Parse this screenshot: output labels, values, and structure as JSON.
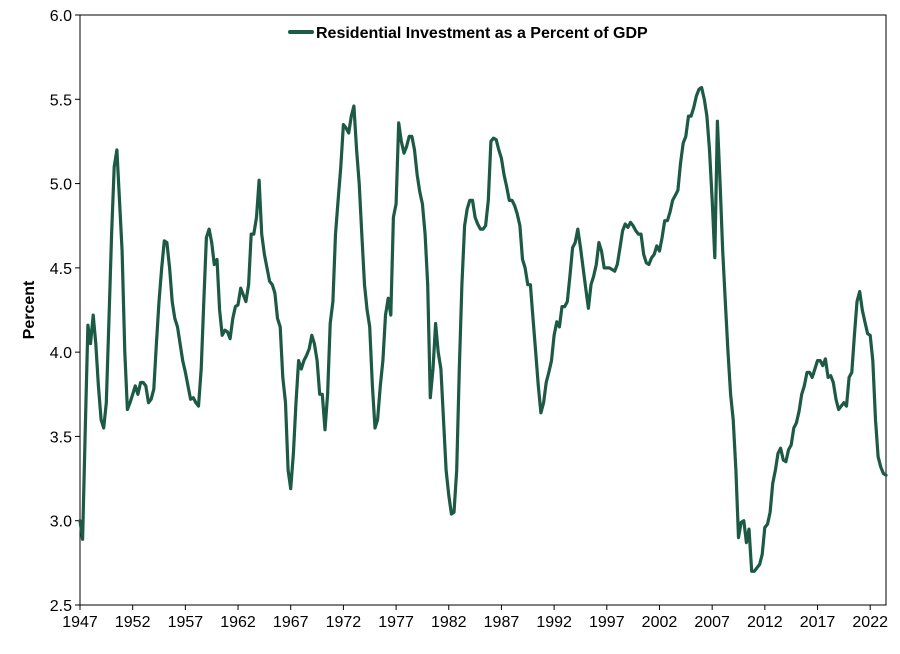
{
  "chart_data": {
    "type": "line",
    "title": "",
    "xlabel": "",
    "ylabel": "Percent",
    "xlim": [
      1947,
      2023.5
    ],
    "ylim": [
      2.5,
      6.0
    ],
    "grid": false,
    "legend": "top-center",
    "x_ticks": [
      "1947",
      "1952",
      "1957",
      "1962",
      "1967",
      "1972",
      "1977",
      "1982",
      "1987",
      "1992",
      "1997",
      "2002",
      "2007",
      "2012",
      "2017",
      "2022"
    ],
    "y_ticks": [
      "2.5",
      "3.0",
      "3.5",
      "4.0",
      "4.5",
      "5.0",
      "5.5",
      "6.0"
    ],
    "colors": {
      "series": "#1d5a45",
      "axis": "#000000"
    },
    "series": [
      {
        "name": "Residential Investment as a Percent of GDP",
        "points": [
          [
            1947.0,
            3.0
          ],
          [
            1947.25,
            2.89
          ],
          [
            1947.5,
            3.55
          ],
          [
            1947.75,
            4.16
          ],
          [
            1948.0,
            4.05
          ],
          [
            1948.25,
            4.22
          ],
          [
            1948.5,
            4.05
          ],
          [
            1948.75,
            3.8
          ],
          [
            1949.0,
            3.6
          ],
          [
            1949.25,
            3.55
          ],
          [
            1949.5,
            3.7
          ],
          [
            1949.75,
            4.2
          ],
          [
            1950.0,
            4.7
          ],
          [
            1950.25,
            5.1
          ],
          [
            1950.5,
            5.2
          ],
          [
            1950.75,
            4.9
          ],
          [
            1951.0,
            4.6
          ],
          [
            1951.25,
            4.0
          ],
          [
            1951.5,
            3.66
          ],
          [
            1951.75,
            3.7
          ],
          [
            1952.0,
            3.75
          ],
          [
            1952.25,
            3.8
          ],
          [
            1952.5,
            3.75
          ],
          [
            1952.75,
            3.82
          ],
          [
            1953.0,
            3.82
          ],
          [
            1953.25,
            3.8
          ],
          [
            1953.5,
            3.7
          ],
          [
            1953.75,
            3.72
          ],
          [
            1954.0,
            3.78
          ],
          [
            1954.25,
            4.05
          ],
          [
            1954.5,
            4.3
          ],
          [
            1954.75,
            4.5
          ],
          [
            1955.0,
            4.66
          ],
          [
            1955.25,
            4.65
          ],
          [
            1955.5,
            4.5
          ],
          [
            1955.75,
            4.3
          ],
          [
            1956.0,
            4.2
          ],
          [
            1956.25,
            4.15
          ],
          [
            1956.5,
            4.05
          ],
          [
            1956.75,
            3.95
          ],
          [
            1957.0,
            3.88
          ],
          [
            1957.25,
            3.8
          ],
          [
            1957.5,
            3.72
          ],
          [
            1957.75,
            3.73
          ],
          [
            1958.0,
            3.7
          ],
          [
            1958.25,
            3.68
          ],
          [
            1958.5,
            3.9
          ],
          [
            1958.75,
            4.3
          ],
          [
            1959.0,
            4.68
          ],
          [
            1959.25,
            4.73
          ],
          [
            1959.5,
            4.65
          ],
          [
            1959.75,
            4.52
          ],
          [
            1960.0,
            4.55
          ],
          [
            1960.25,
            4.25
          ],
          [
            1960.5,
            4.1
          ],
          [
            1960.75,
            4.13
          ],
          [
            1961.0,
            4.12
          ],
          [
            1961.25,
            4.08
          ],
          [
            1961.5,
            4.2
          ],
          [
            1961.75,
            4.27
          ],
          [
            1962.0,
            4.28
          ],
          [
            1962.25,
            4.38
          ],
          [
            1962.5,
            4.34
          ],
          [
            1962.75,
            4.3
          ],
          [
            1963.0,
            4.4
          ],
          [
            1963.25,
            4.7
          ],
          [
            1963.5,
            4.7
          ],
          [
            1963.75,
            4.8
          ],
          [
            1964.0,
            5.02
          ],
          [
            1964.25,
            4.7
          ],
          [
            1964.5,
            4.58
          ],
          [
            1964.75,
            4.5
          ],
          [
            1965.0,
            4.42
          ],
          [
            1965.25,
            4.4
          ],
          [
            1965.5,
            4.35
          ],
          [
            1965.75,
            4.2
          ],
          [
            1966.0,
            4.15
          ],
          [
            1966.25,
            3.85
          ],
          [
            1966.5,
            3.7
          ],
          [
            1966.75,
            3.3
          ],
          [
            1967.0,
            3.19
          ],
          [
            1967.25,
            3.4
          ],
          [
            1967.5,
            3.7
          ],
          [
            1967.75,
            3.95
          ],
          [
            1968.0,
            3.9
          ],
          [
            1968.25,
            3.95
          ],
          [
            1968.5,
            3.98
          ],
          [
            1968.75,
            4.02
          ],
          [
            1969.0,
            4.1
          ],
          [
            1969.25,
            4.05
          ],
          [
            1969.5,
            3.95
          ],
          [
            1969.75,
            3.75
          ],
          [
            1970.0,
            3.75
          ],
          [
            1970.25,
            3.54
          ],
          [
            1970.5,
            3.75
          ],
          [
            1970.75,
            4.17
          ],
          [
            1971.0,
            4.3
          ],
          [
            1971.25,
            4.7
          ],
          [
            1971.5,
            4.9
          ],
          [
            1971.75,
            5.1
          ],
          [
            1972.0,
            5.35
          ],
          [
            1972.25,
            5.33
          ],
          [
            1972.5,
            5.3
          ],
          [
            1972.75,
            5.4
          ],
          [
            1973.0,
            5.46
          ],
          [
            1973.25,
            5.2
          ],
          [
            1973.5,
            5.0
          ],
          [
            1973.75,
            4.7
          ],
          [
            1974.0,
            4.4
          ],
          [
            1974.25,
            4.25
          ],
          [
            1974.5,
            4.15
          ],
          [
            1974.75,
            3.8
          ],
          [
            1975.0,
            3.55
          ],
          [
            1975.25,
            3.6
          ],
          [
            1975.5,
            3.8
          ],
          [
            1975.75,
            3.95
          ],
          [
            1976.0,
            4.22
          ],
          [
            1976.25,
            4.32
          ],
          [
            1976.5,
            4.22
          ],
          [
            1976.75,
            4.8
          ],
          [
            1977.0,
            4.88
          ],
          [
            1977.25,
            5.36
          ],
          [
            1977.5,
            5.25
          ],
          [
            1977.75,
            5.18
          ],
          [
            1978.0,
            5.22
          ],
          [
            1978.25,
            5.28
          ],
          [
            1978.5,
            5.28
          ],
          [
            1978.75,
            5.2
          ],
          [
            1979.0,
            5.05
          ],
          [
            1979.25,
            4.95
          ],
          [
            1979.5,
            4.88
          ],
          [
            1979.75,
            4.7
          ],
          [
            1980.0,
            4.4
          ],
          [
            1980.25,
            3.73
          ],
          [
            1980.5,
            3.9
          ],
          [
            1980.75,
            4.17
          ],
          [
            1981.0,
            4.0
          ],
          [
            1981.25,
            3.9
          ],
          [
            1981.5,
            3.6
          ],
          [
            1981.75,
            3.3
          ],
          [
            1982.0,
            3.15
          ],
          [
            1982.25,
            3.04
          ],
          [
            1982.5,
            3.05
          ],
          [
            1982.75,
            3.3
          ],
          [
            1983.0,
            3.9
          ],
          [
            1983.25,
            4.4
          ],
          [
            1983.5,
            4.75
          ],
          [
            1983.75,
            4.85
          ],
          [
            1984.0,
            4.9
          ],
          [
            1984.25,
            4.9
          ],
          [
            1984.5,
            4.8
          ],
          [
            1984.75,
            4.76
          ],
          [
            1985.0,
            4.73
          ],
          [
            1985.25,
            4.73
          ],
          [
            1985.5,
            4.75
          ],
          [
            1985.75,
            4.9
          ],
          [
            1986.0,
            5.25
          ],
          [
            1986.25,
            5.27
          ],
          [
            1986.5,
            5.26
          ],
          [
            1986.75,
            5.2
          ],
          [
            1987.0,
            5.15
          ],
          [
            1987.25,
            5.05
          ],
          [
            1987.5,
            4.98
          ],
          [
            1987.75,
            4.9
          ],
          [
            1988.0,
            4.9
          ],
          [
            1988.25,
            4.87
          ],
          [
            1988.5,
            4.82
          ],
          [
            1988.75,
            4.75
          ],
          [
            1989.0,
            4.55
          ],
          [
            1989.25,
            4.5
          ],
          [
            1989.5,
            4.4
          ],
          [
            1989.75,
            4.4
          ],
          [
            1990.0,
            4.2
          ],
          [
            1990.25,
            4.0
          ],
          [
            1990.5,
            3.8
          ],
          [
            1990.75,
            3.64
          ],
          [
            1991.0,
            3.7
          ],
          [
            1991.25,
            3.82
          ],
          [
            1991.5,
            3.88
          ],
          [
            1991.75,
            3.95
          ],
          [
            1992.0,
            4.1
          ],
          [
            1992.25,
            4.18
          ],
          [
            1992.5,
            4.15
          ],
          [
            1992.75,
            4.27
          ],
          [
            1993.0,
            4.27
          ],
          [
            1993.25,
            4.3
          ],
          [
            1993.5,
            4.45
          ],
          [
            1993.75,
            4.62
          ],
          [
            1994.0,
            4.65
          ],
          [
            1994.25,
            4.73
          ],
          [
            1994.5,
            4.62
          ],
          [
            1994.75,
            4.5
          ],
          [
            1995.0,
            4.38
          ],
          [
            1995.25,
            4.26
          ],
          [
            1995.5,
            4.4
          ],
          [
            1995.75,
            4.45
          ],
          [
            1996.0,
            4.52
          ],
          [
            1996.25,
            4.65
          ],
          [
            1996.5,
            4.6
          ],
          [
            1996.75,
            4.5
          ],
          [
            1997.0,
            4.5
          ],
          [
            1997.25,
            4.5
          ],
          [
            1997.5,
            4.49
          ],
          [
            1997.75,
            4.48
          ],
          [
            1998.0,
            4.52
          ],
          [
            1998.25,
            4.62
          ],
          [
            1998.5,
            4.72
          ],
          [
            1998.75,
            4.76
          ],
          [
            1999.0,
            4.74
          ],
          [
            1999.25,
            4.77
          ],
          [
            1999.5,
            4.75
          ],
          [
            1999.75,
            4.72
          ],
          [
            2000.0,
            4.7
          ],
          [
            2000.25,
            4.7
          ],
          [
            2000.5,
            4.58
          ],
          [
            2000.75,
            4.53
          ],
          [
            2001.0,
            4.52
          ],
          [
            2001.25,
            4.56
          ],
          [
            2001.5,
            4.58
          ],
          [
            2001.75,
            4.63
          ],
          [
            2002.0,
            4.6
          ],
          [
            2002.25,
            4.68
          ],
          [
            2002.5,
            4.78
          ],
          [
            2002.75,
            4.78
          ],
          [
            2003.0,
            4.83
          ],
          [
            2003.25,
            4.9
          ],
          [
            2003.5,
            4.93
          ],
          [
            2003.75,
            4.96
          ],
          [
            2004.0,
            5.12
          ],
          [
            2004.25,
            5.24
          ],
          [
            2004.5,
            5.28
          ],
          [
            2004.75,
            5.4
          ],
          [
            2005.0,
            5.4
          ],
          [
            2005.25,
            5.45
          ],
          [
            2005.5,
            5.52
          ],
          [
            2005.75,
            5.56
          ],
          [
            2006.0,
            5.57
          ],
          [
            2006.25,
            5.5
          ],
          [
            2006.5,
            5.4
          ],
          [
            2006.75,
            5.2
          ],
          [
            2007.0,
            4.9
          ],
          [
            2007.25,
            4.56
          ],
          [
            2007.5,
            5.37
          ],
          [
            2007.75,
            5.0
          ],
          [
            2008.0,
            4.6
          ],
          [
            2008.25,
            4.3
          ],
          [
            2008.5,
            4.0
          ],
          [
            2008.75,
            3.75
          ],
          [
            2009.0,
            3.6
          ],
          [
            2009.25,
            3.3
          ],
          [
            2009.5,
            2.9
          ],
          [
            2009.75,
            2.99
          ],
          [
            2010.0,
            3.0
          ],
          [
            2010.25,
            2.87
          ],
          [
            2010.5,
            2.95
          ],
          [
            2010.75,
            2.7
          ],
          [
            2011.0,
            2.7
          ],
          [
            2011.25,
            2.72
          ],
          [
            2011.5,
            2.74
          ],
          [
            2011.75,
            2.8
          ],
          [
            2012.0,
            2.96
          ],
          [
            2012.25,
            2.98
          ],
          [
            2012.5,
            3.05
          ],
          [
            2012.75,
            3.22
          ],
          [
            2013.0,
            3.3
          ],
          [
            2013.25,
            3.4
          ],
          [
            2013.5,
            3.43
          ],
          [
            2013.75,
            3.36
          ],
          [
            2014.0,
            3.35
          ],
          [
            2014.25,
            3.42
          ],
          [
            2014.5,
            3.45
          ],
          [
            2014.75,
            3.55
          ],
          [
            2015.0,
            3.58
          ],
          [
            2015.25,
            3.65
          ],
          [
            2015.5,
            3.75
          ],
          [
            2015.75,
            3.8
          ],
          [
            2016.0,
            3.88
          ],
          [
            2016.25,
            3.88
          ],
          [
            2016.5,
            3.85
          ],
          [
            2016.75,
            3.9
          ],
          [
            2017.0,
            3.95
          ],
          [
            2017.25,
            3.95
          ],
          [
            2017.5,
            3.92
          ],
          [
            2017.75,
            3.96
          ],
          [
            2018.0,
            3.85
          ],
          [
            2018.25,
            3.86
          ],
          [
            2018.5,
            3.82
          ],
          [
            2018.75,
            3.72
          ],
          [
            2019.0,
            3.66
          ],
          [
            2019.25,
            3.68
          ],
          [
            2019.5,
            3.7
          ],
          [
            2019.75,
            3.68
          ],
          [
            2020.0,
            3.85
          ],
          [
            2020.25,
            3.88
          ],
          [
            2020.5,
            4.1
          ],
          [
            2020.75,
            4.3
          ],
          [
            2021.0,
            4.36
          ],
          [
            2021.25,
            4.25
          ],
          [
            2021.5,
            4.18
          ],
          [
            2021.75,
            4.11
          ],
          [
            2022.0,
            4.1
          ],
          [
            2022.25,
            3.95
          ],
          [
            2022.5,
            3.6
          ],
          [
            2022.75,
            3.38
          ],
          [
            2023.0,
            3.32
          ],
          [
            2023.25,
            3.28
          ],
          [
            2023.5,
            3.27
          ]
        ]
      }
    ]
  }
}
